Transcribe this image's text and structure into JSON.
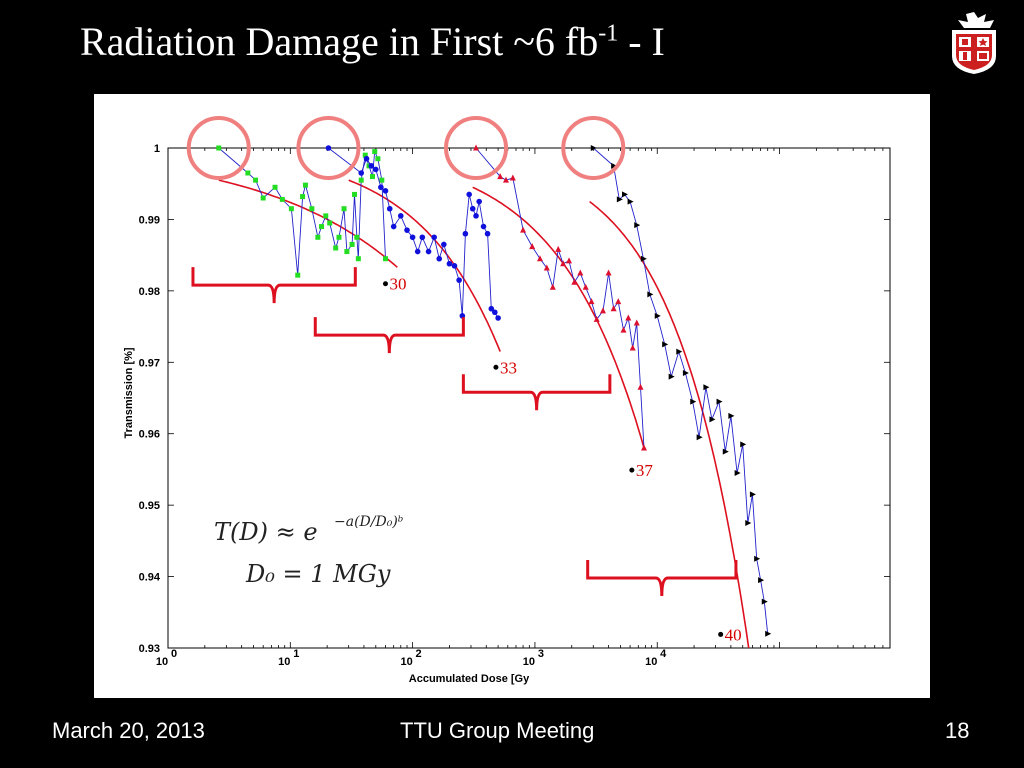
{
  "slide": {
    "title_main": "Radiation Damage in First ~6 fb",
    "title_sup": "-1",
    "title_suffix": " - I",
    "footer_date": "March 20, 2013",
    "footer_meeting": "TTU Group Meeting",
    "footer_page": "18",
    "logo_icon": "university-shield-icon"
  },
  "chart_data": {
    "type": "scatter",
    "title": "",
    "xlabel": "Accumulated Dose [Gy",
    "ylabel": "Transmission [%]",
    "xscale": "log",
    "xlim": [
      1,
      800000
    ],
    "ylim": [
      0.93,
      1.0
    ],
    "grid": false,
    "legend": "none",
    "x_tick_labels": [
      "10",
      "10",
      "10",
      "10",
      "10"
    ],
    "x_tick_exponents": [
      "0",
      "1",
      "2",
      "3",
      "4"
    ],
    "x_tick_values": [
      1,
      10,
      100,
      1000,
      10000
    ],
    "y_tick_labels": [
      "1",
      "0.99",
      "0.98",
      "0.97",
      "0.96",
      "0.95",
      "0.94",
      "0.93"
    ],
    "y_tick_values": [
      1.0,
      0.99,
      0.98,
      0.97,
      0.96,
      0.95,
      0.94,
      0.93
    ],
    "series": [
      {
        "color": "#22dd22",
        "line_color": "#2222cc",
        "marker": "square",
        "x": [
          2.6,
          4.5,
          5.2,
          6.0,
          7.5,
          8.6,
          10.2,
          11.5,
          12.6,
          13.3,
          15.0,
          16.8,
          18.0,
          19.5,
          21.0,
          23.5,
          25.0,
          27.5,
          29.0,
          32.0,
          33.5,
          35.0,
          36.0,
          38.0,
          41.0,
          44.0,
          47.0,
          49.0,
          52.0,
          56.0,
          60.0
        ],
        "y": [
          1.0,
          0.9965,
          0.9955,
          0.993,
          0.9945,
          0.9928,
          0.9915,
          0.9822,
          0.9932,
          0.9948,
          0.9915,
          0.9875,
          0.989,
          0.9905,
          0.9895,
          0.986,
          0.9875,
          0.9915,
          0.9855,
          0.9865,
          0.9935,
          0.9875,
          0.9845,
          0.9955,
          0.999,
          0.9975,
          0.996,
          0.9995,
          0.9985,
          0.9955,
          0.9845
        ]
      },
      {
        "color": "#1010dd",
        "line_color": "#2222cc",
        "marker": "circle",
        "x": [
          20.5,
          38.0,
          42.0,
          46.0,
          50.0,
          55.0,
          60.0,
          65.0,
          70.0,
          80.0,
          90.0,
          100.0,
          110.0,
          120.0,
          135.0,
          150.0,
          165.0,
          180.0,
          200.0,
          220.0,
          240.0,
          255.0,
          270.0,
          290.0,
          310.0,
          330.0,
          350.0,
          380.0,
          410.0,
          440.0,
          470.0,
          500.0
        ],
        "y": [
          1.0,
          0.9965,
          0.9985,
          0.9975,
          0.997,
          0.9945,
          0.994,
          0.9915,
          0.989,
          0.9905,
          0.9885,
          0.9875,
          0.9855,
          0.9875,
          0.9855,
          0.9875,
          0.9845,
          0.9865,
          0.9838,
          0.9835,
          0.9815,
          0.9765,
          0.988,
          0.9935,
          0.9915,
          0.9905,
          0.9925,
          0.989,
          0.988,
          0.9775,
          0.977,
          0.9762
        ]
      },
      {
        "color": "#dd1030",
        "line_color": "#2222cc",
        "marker": "triangle",
        "x": [
          330.0,
          520.0,
          580.0,
          660.0,
          800.0,
          950.0,
          1100.0,
          1250.0,
          1400.0,
          1550.0,
          1700.0,
          1900.0,
          2100.0,
          2350.0,
          2600.0,
          2900.0,
          3200.0,
          3600.0,
          4000.0,
          4400.0,
          4800.0,
          5300.0,
          5800.0,
          6300.0,
          6800.0,
          7300.0,
          7800.0
        ],
        "y": [
          1.0,
          0.996,
          0.9955,
          0.9958,
          0.9885,
          0.9862,
          0.9845,
          0.9832,
          0.9805,
          0.9858,
          0.9838,
          0.9842,
          0.9812,
          0.9825,
          0.9805,
          0.9785,
          0.976,
          0.9772,
          0.9825,
          0.9775,
          0.9785,
          0.9745,
          0.9762,
          0.972,
          0.9755,
          0.9665,
          0.958
        ]
      },
      {
        "color": "#000000",
        "line_color": "#2222cc",
        "marker": "triangle-right",
        "x": [
          3000.0,
          4400.0,
          4900.0,
          5400.0,
          6000.0,
          6800.0,
          7700.0,
          8700.0,
          10000.0,
          11500.0,
          13000.0,
          15000.0,
          17000.0,
          19500.0,
          22000.0,
          25000.0,
          28000.0,
          32000.0,
          36000.0,
          40000.0,
          45000.0,
          50000.0,
          55000.0,
          60000.0,
          65000.0,
          70000.0,
          75000.0,
          80000.0
        ],
        "y": [
          1.0,
          0.9975,
          0.9928,
          0.9935,
          0.9925,
          0.9892,
          0.9845,
          0.9795,
          0.9765,
          0.9725,
          0.968,
          0.9715,
          0.9685,
          0.9645,
          0.9595,
          0.9665,
          0.962,
          0.9645,
          0.9575,
          0.9625,
          0.9545,
          0.9585,
          0.9475,
          0.9515,
          0.9425,
          0.9395,
          0.9365,
          0.932
        ]
      }
    ],
    "fit_curves": [
      {
        "color": "#dd1020",
        "x_range": [
          2.6,
          75
        ],
        "y_start": 0.9955
      },
      {
        "color": "#dd1020",
        "x_range": [
          30,
          520
        ],
        "y_start": 0.9955
      },
      {
        "color": "#dd1020",
        "x_range": [
          310,
          7800
        ],
        "y_start": 0.9945
      },
      {
        "color": "#dd1020",
        "x_range": [
          2800,
          56000
        ],
        "y_start": 0.9925
      }
    ],
    "highlight_circles": [
      {
        "x": 2.6,
        "y": 1.0,
        "color": "#f08080"
      },
      {
        "x": 20.5,
        "y": 1.0,
        "color": "#f08080"
      },
      {
        "x": 330.0,
        "y": 1.0,
        "color": "#f08080"
      },
      {
        "x": 3000.0,
        "y": 1.0,
        "color": "#f08080"
      }
    ],
    "braces": [
      {
        "x_from": 1.6,
        "x_to": 34.0,
        "y_level": 0.9808,
        "color": "#dd1020"
      },
      {
        "x_from": 16.0,
        "x_to": 260.0,
        "y_level": 0.9738,
        "color": "#dd1020"
      },
      {
        "x_from": 260.0,
        "x_to": 4100.0,
        "y_level": 0.9658,
        "color": "#dd1020"
      },
      {
        "x_from": 2700.0,
        "x_to": 44000.0,
        "y_level": 0.9398,
        "color": "#dd1020"
      }
    ],
    "annotations": [
      {
        "text": "30",
        "x": 60.0,
        "y": 0.981
      },
      {
        "text": "33",
        "x": 480.0,
        "y": 0.9693
      },
      {
        "text": "37",
        "x": 6200.0,
        "y": 0.9549
      },
      {
        "text": "40",
        "x": 33000.0,
        "y": 0.9319
      }
    ],
    "equation": {
      "line1_lhs": "T(D) ≈ e",
      "line1_exp": "−a(D/D₀)ᵇ",
      "line2": "D₀ = 1 MGy"
    }
  }
}
